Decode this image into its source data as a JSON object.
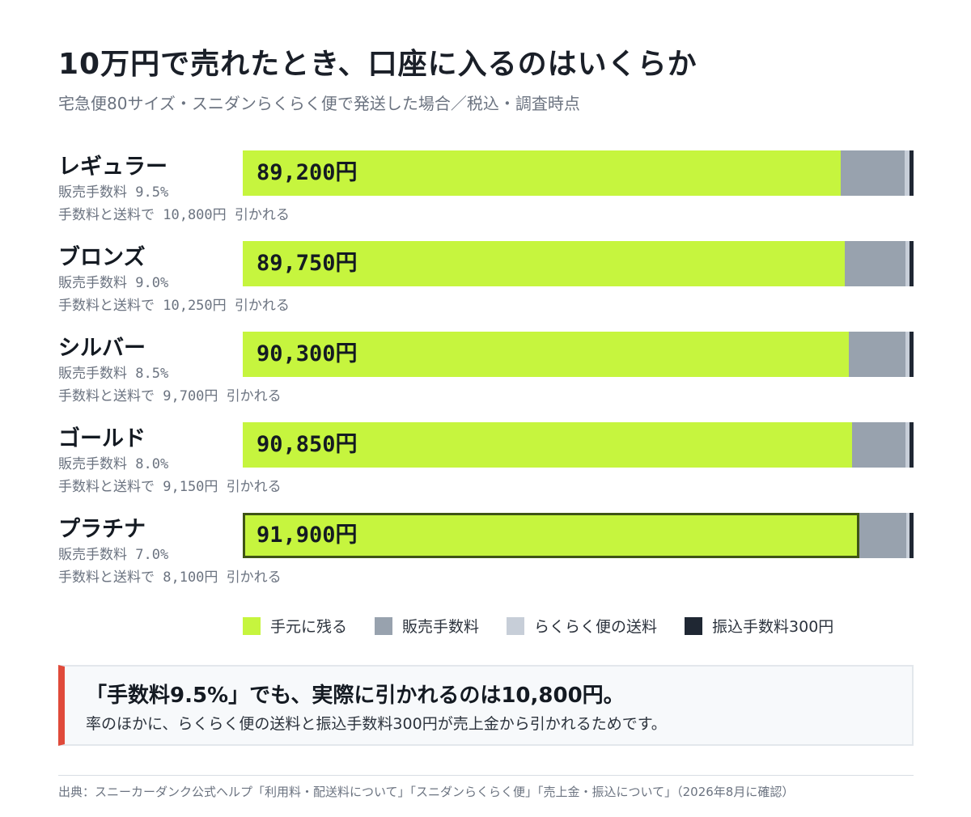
{
  "title": "10万円で売れたとき、口座に入るのはいくらか",
  "subtitle": "宅急便80サイズ・スニダンらくらく便で発送した場合／税込・調査時点",
  "chart_data": {
    "type": "bar",
    "stacked": true,
    "orientation": "horizontal",
    "sale_price": 100000,
    "categories": [
      "レギュラー",
      "ブロンズ",
      "シルバー",
      "ゴールド",
      "プラチナ"
    ],
    "fee_rates": [
      "販売手数料 9.5%",
      "販売手数料 9.0%",
      "販売手数料 8.5%",
      "販売手数料 8.0%",
      "販売手数料 7.0%"
    ],
    "total_deductions": [
      "手数料と送料で 10,800円 引かれる",
      "手数料と送料で 10,250円 引かれる",
      "手数料と送料で 9,700円 引かれる",
      "手数料と送料で 9,150円 引かれる",
      "手数料と送料で 8,100円 引かれる"
    ],
    "value_labels": [
      "89,200円",
      "89,750円",
      "90,300円",
      "90,850円",
      "91,900円"
    ],
    "highlight_index": 4,
    "series": [
      {
        "name": "手元に残る",
        "color": "#c6f53e",
        "values": [
          89200,
          89750,
          90300,
          90850,
          91900
        ]
      },
      {
        "name": "販売手数料",
        "color": "#98a2ae",
        "values": [
          9500,
          9000,
          8500,
          8000,
          7000
        ]
      },
      {
        "name": "らくらく便の送料",
        "color": "#c7ced8",
        "values": [
          1000,
          950,
          900,
          850,
          800
        ]
      },
      {
        "name": "振込手数料300円",
        "color": "#1f2733",
        "values": [
          300,
          300,
          300,
          300,
          300
        ]
      }
    ]
  },
  "callout": {
    "headline": "「手数料9.5%」でも、実際に引かれるのは10,800円。",
    "body": "率のほかに、らくらく便の送料と振込手数料300円が売上金から引かれるためです。",
    "accent_color": "#e04a3a"
  },
  "source": "出典：スニーカーダンク公式ヘルプ「利用料・配送料について」「スニダンらくらく便」「売上金・振込について」（2026年8月に確認）"
}
